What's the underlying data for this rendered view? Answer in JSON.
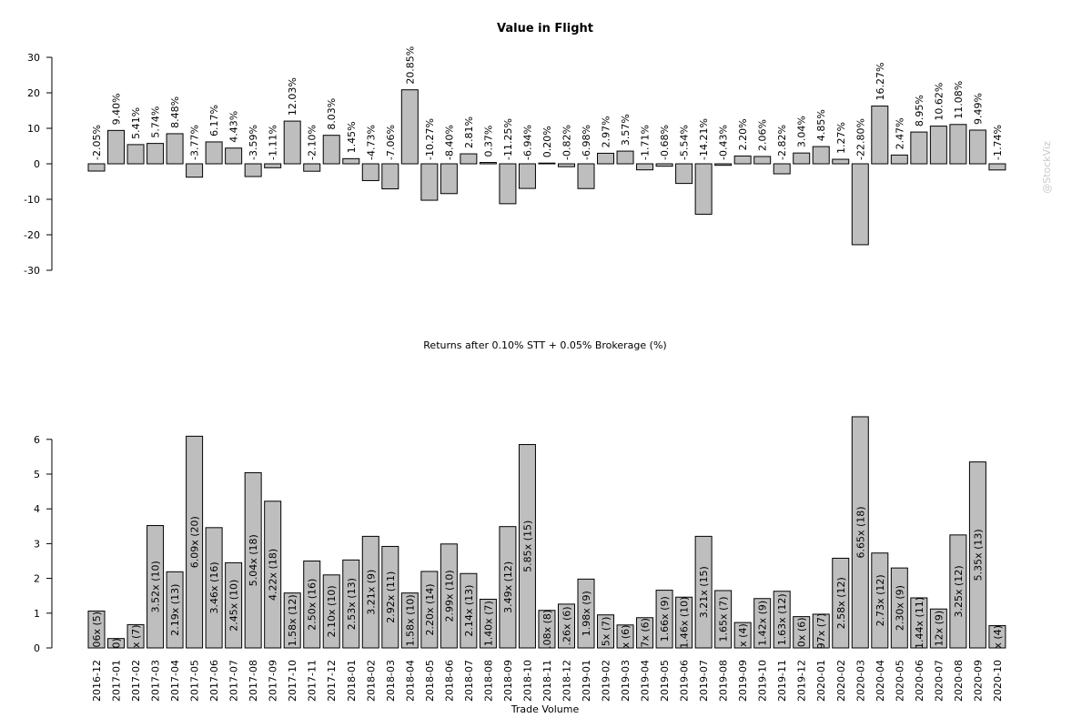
{
  "watermark": "@StockViz",
  "chart_data": [
    {
      "type": "bar",
      "title": "Value in Flight",
      "xlabel": "Returns after 0.10% STT + 0.05% Brokerage (%)",
      "ylabel": "",
      "ylim": [
        -30,
        30
      ],
      "yticks": [
        30,
        20,
        10,
        0,
        -10,
        -20,
        -30
      ],
      "grid": false,
      "categories": [
        "2016-12",
        "2017-01",
        "2017-02",
        "2017-03",
        "2017-04",
        "2017-05",
        "2017-06",
        "2017-07",
        "2017-08",
        "2017-09",
        "2017-10",
        "2017-11",
        "2017-12",
        "2018-01",
        "2018-02",
        "2018-03",
        "2018-04",
        "2018-05",
        "2018-06",
        "2018-07",
        "2018-08",
        "2018-09",
        "2018-10",
        "2018-11",
        "2018-12",
        "2019-01",
        "2019-02",
        "2019-03",
        "2019-04",
        "2019-05",
        "2019-06",
        "2019-07",
        "2019-08",
        "2019-09",
        "2019-10",
        "2019-11",
        "2019-12",
        "2020-01",
        "2020-02",
        "2020-03",
        "2020-04",
        "2020-05",
        "2020-06",
        "2020-07",
        "2020-08",
        "2020-09",
        "2020-10"
      ],
      "values": [
        -2.05,
        9.4,
        5.41,
        5.74,
        8.48,
        -3.77,
        6.17,
        4.43,
        -3.59,
        -1.11,
        12.03,
        -2.1,
        8.03,
        1.45,
        -4.73,
        -7.06,
        20.85,
        -10.27,
        -8.4,
        2.81,
        0.37,
        -11.25,
        -6.94,
        0.2,
        -0.82,
        -6.98,
        2.97,
        3.57,
        -1.71,
        -0.68,
        -5.54,
        -14.21,
        -0.43,
        2.2,
        2.06,
        -2.82,
        3.04,
        4.85,
        1.27,
        -22.8,
        16.27,
        2.47,
        8.95,
        10.62,
        11.08,
        9.49,
        -1.74
      ],
      "data_labels": [
        "-2.05%",
        "9.40%",
        "5.41%",
        "5.74%",
        "8.48%",
        "-3.77%",
        "6.17%",
        "4.43%",
        "-3.59%",
        "-1.11%",
        "12.03%",
        "-2.10%",
        "8.03%",
        "1.45%",
        "-4.73%",
        "-7.06%",
        "20.85%",
        "-10.27%",
        "-8.40%",
        "2.81%",
        "0.37%",
        "-11.25%",
        "-6.94%",
        "0.20%",
        "-0.82%",
        "-6.98%",
        "2.97%",
        "3.57%",
        "-1.71%",
        "-0.68%",
        "-5.54%",
        "-14.21%",
        "-0.43%",
        "2.20%",
        "2.06%",
        "-2.82%",
        "3.04%",
        "4.85%",
        "1.27%",
        "-22.80%",
        "16.27%",
        "2.47%",
        "8.95%",
        "10.62%",
        "11.08%",
        "9.49%",
        "-1.74%"
      ]
    },
    {
      "type": "bar",
      "title": "",
      "xlabel": "Trade Volume",
      "ylabel": "",
      "ylim": [
        0,
        6.7
      ],
      "yticks": [
        0,
        1,
        2,
        3,
        4,
        5,
        6
      ],
      "grid": false,
      "categories": [
        "2016-12",
        "2017-01",
        "2017-02",
        "2017-03",
        "2017-04",
        "2017-05",
        "2017-06",
        "2017-07",
        "2017-08",
        "2017-09",
        "2017-10",
        "2017-11",
        "2017-12",
        "2018-01",
        "2018-02",
        "2018-03",
        "2018-04",
        "2018-05",
        "2018-06",
        "2018-07",
        "2018-08",
        "2018-09",
        "2018-10",
        "2018-11",
        "2018-12",
        "2019-01",
        "2019-02",
        "2019-03",
        "2019-04",
        "2019-05",
        "2019-06",
        "2019-07",
        "2019-08",
        "2019-09",
        "2019-10",
        "2019-11",
        "2019-12",
        "2020-01",
        "2020-02",
        "2020-03",
        "2020-04",
        "2020-05",
        "2020-06",
        "2020-07",
        "2020-08",
        "2020-09",
        "2020-10"
      ],
      "values": [
        1.06,
        0.27,
        0.67,
        3.52,
        2.19,
        6.09,
        3.46,
        2.45,
        5.04,
        4.22,
        1.58,
        2.5,
        2.1,
        2.53,
        3.21,
        2.92,
        1.58,
        2.2,
        2.99,
        2.14,
        1.4,
        3.49,
        5.85,
        1.08,
        1.26,
        1.98,
        0.95,
        0.66,
        0.87,
        1.66,
        1.46,
        3.21,
        1.65,
        0.73,
        1.42,
        1.63,
        0.9,
        0.97,
        2.58,
        6.65,
        2.73,
        2.3,
        1.44,
        1.12,
        3.25,
        5.35,
        0.64
      ],
      "data_labels": [
        "06x (5)",
        "0)",
        "x (7)",
        "3.52x (10)",
        "2.19x (13)",
        "6.09x (20)",
        "3.46x (16)",
        "2.45x (10)",
        "5.04x (18)",
        "4.22x (18)",
        "1.58x (12)",
        "2.50x (16)",
        "2.10x (10)",
        "2.53x (13)",
        "3.21x (9)",
        "2.92x (11)",
        "1.58x (10)",
        "2.20x (14)",
        "2.99x (10)",
        "2.14x (13)",
        "1.40x (7)",
        "3.49x (12)",
        "5.85x (15)",
        ".08x (8)",
        ".26x (6)",
        "1.98x (9)",
        "5x (7)",
        "x (6)",
        "7x (6)",
        "1.66x (9)",
        "1.46x (10)",
        "3.21x (15)",
        "1.65x (7)",
        "x (4)",
        "1.42x (9)",
        "1.63x (12)",
        "0x (6)",
        "97x (7)",
        "2.58x (12)",
        "6.65x (18)",
        "2.73x (12)",
        "2.30x (9)",
        "1.44x (11)",
        "12x (9)",
        "3.25x (12)",
        "5.35x (13)",
        "x (4)"
      ]
    }
  ]
}
